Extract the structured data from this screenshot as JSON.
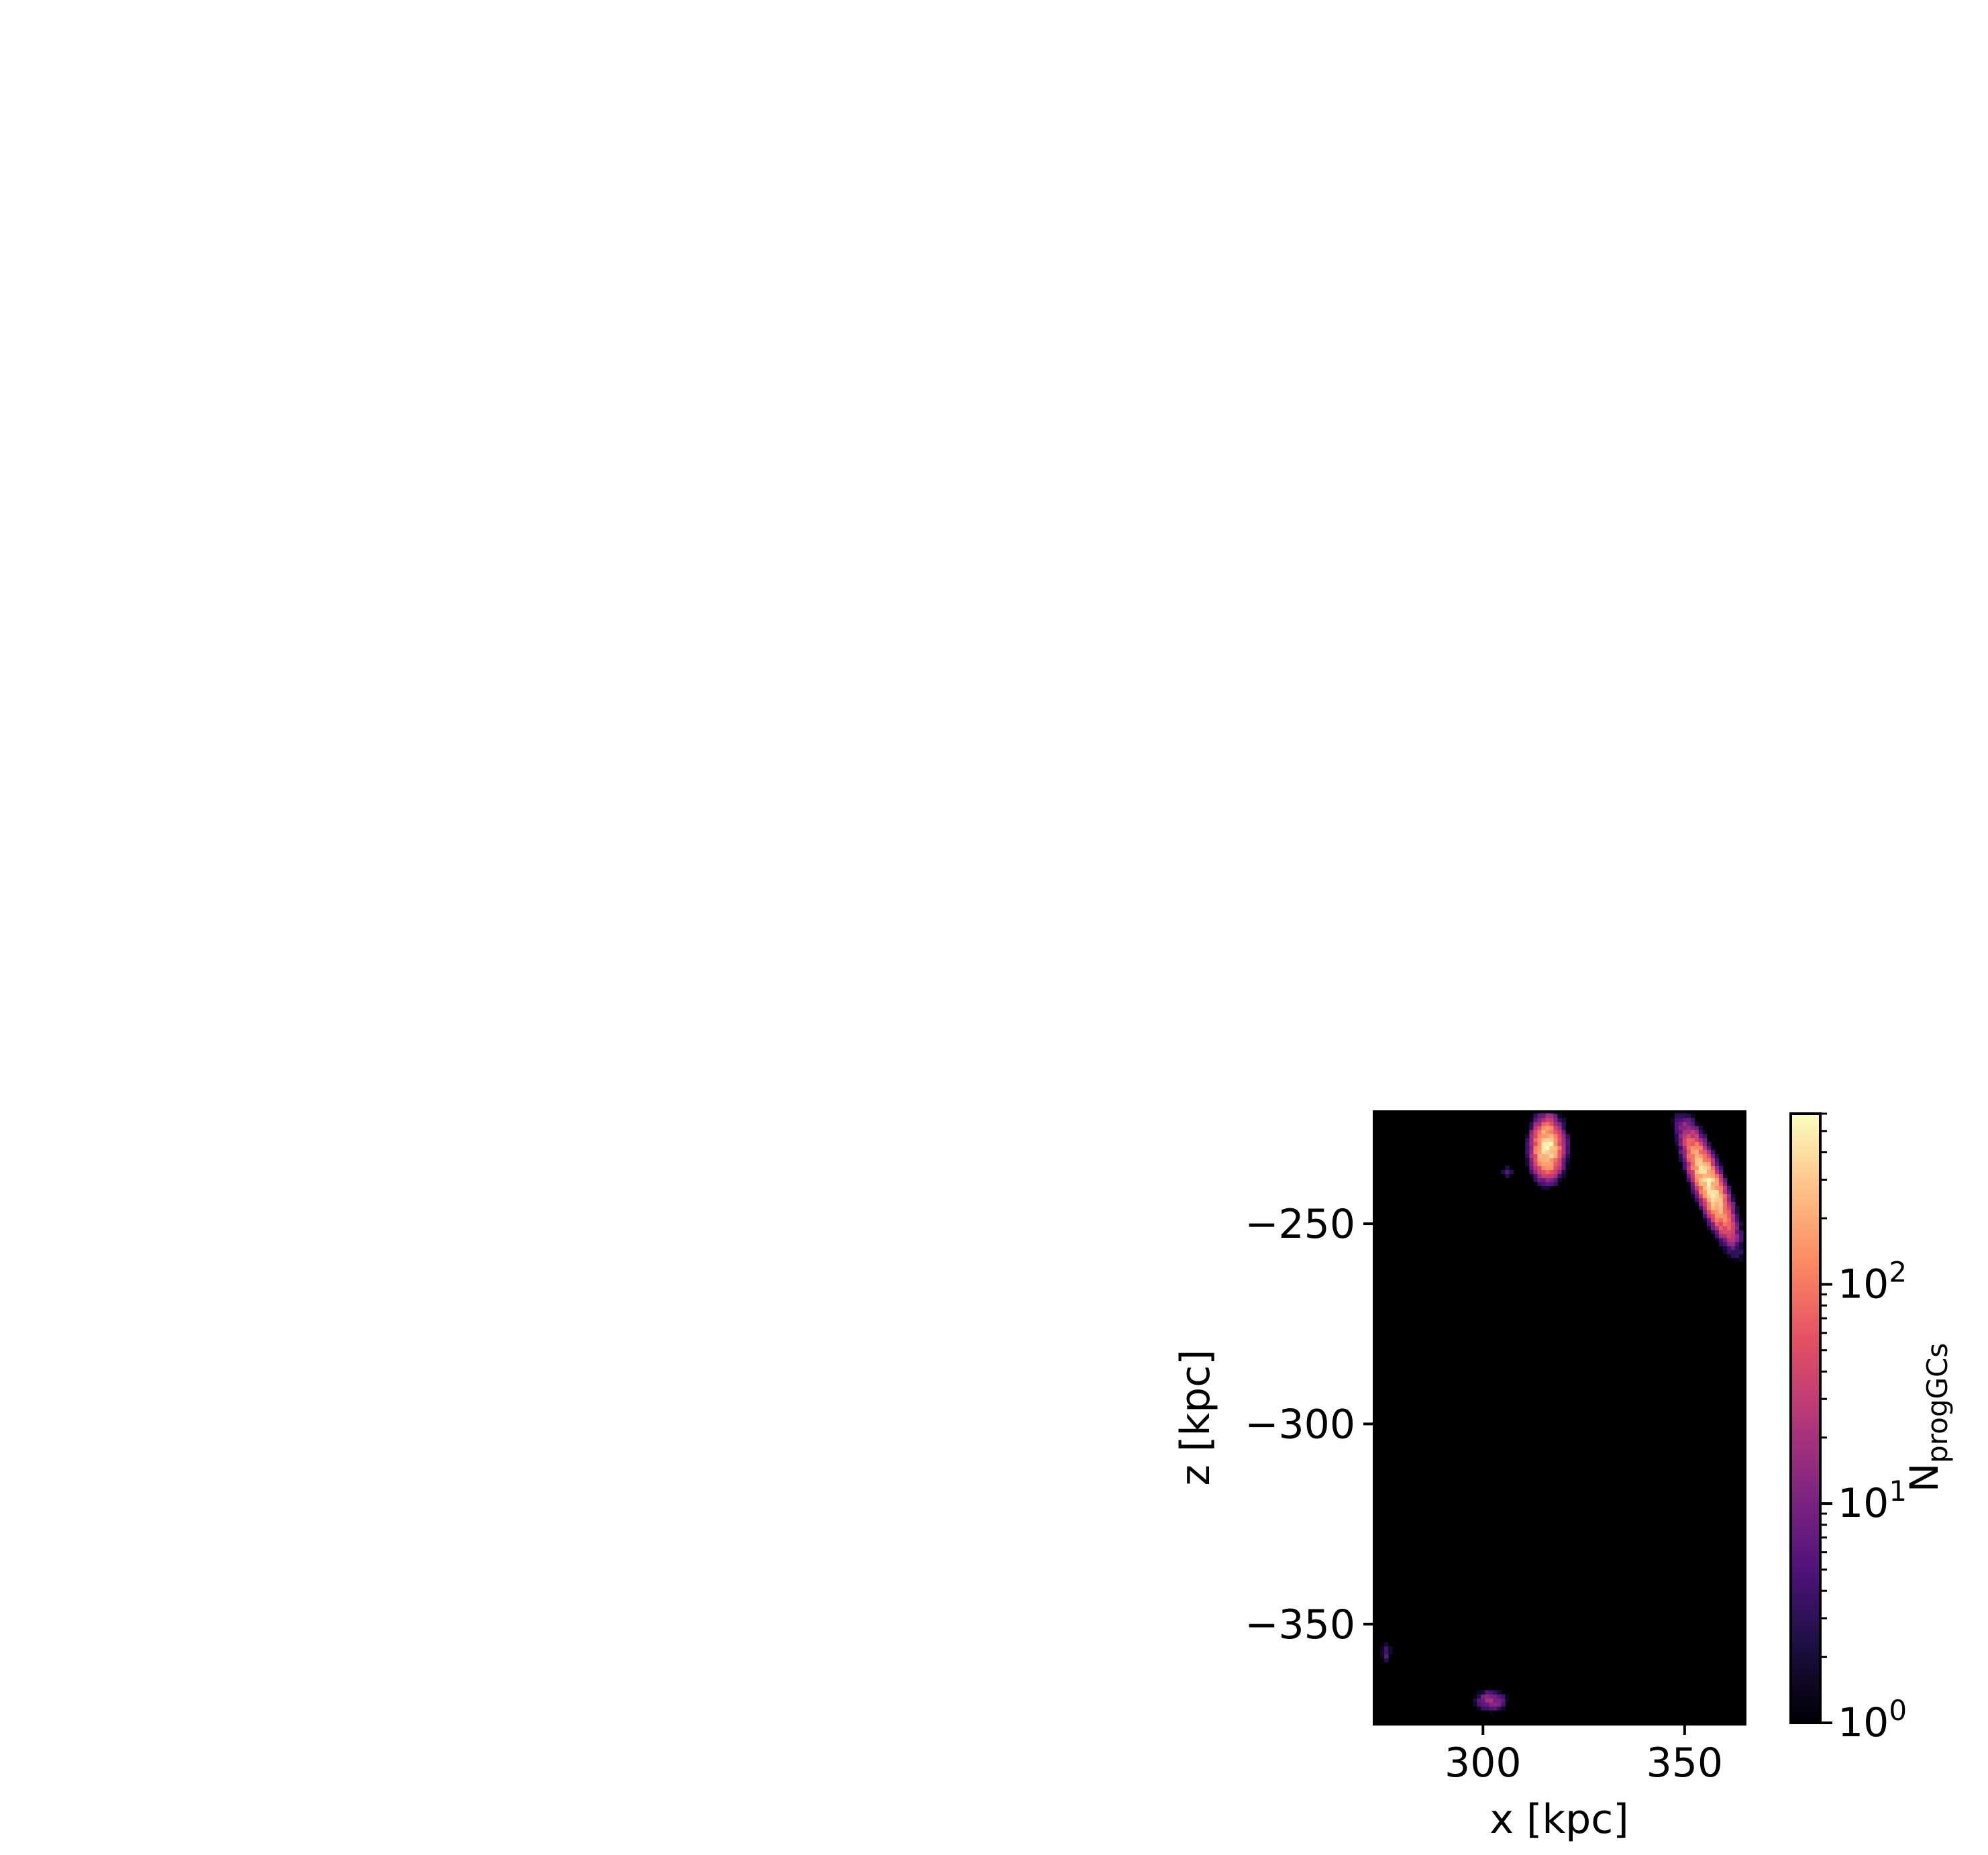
{
  "chart_data": {
    "type": "heatmap",
    "title": "",
    "xlabel": "x [kpc]",
    "ylabel": "z [kpc]",
    "xlim": [
      273,
      365
    ],
    "ylim": [
      -375,
      -222
    ],
    "xticks": [
      300,
      350
    ],
    "xtick_labels": [
      "300",
      "350"
    ],
    "yticks": [
      -250,
      -300,
      -350
    ],
    "ytick_labels": [
      "−250",
      "−300",
      "−350"
    ],
    "background_color": "#000000",
    "colormap": "magma",
    "grid": false,
    "colorbar": {
      "label_main": "N",
      "label_sub": "progGCs",
      "scale": "log",
      "range": [
        1,
        600
      ],
      "ticks": [
        1,
        10,
        100
      ],
      "tick_bases": [
        "10",
        "10",
        "10"
      ],
      "tick_exponents": [
        "0",
        "1",
        "2"
      ]
    },
    "clusters": [
      {
        "x": 316,
        "z": -231,
        "peak_count": 500,
        "sigma_x": 1.6,
        "sigma_z": 3.0,
        "tilt_deg": 0
      },
      {
        "x": 356,
        "z": -240,
        "peak_count": 450,
        "sigma_x": 1.4,
        "sigma_z": 6.0,
        "tilt_deg": -22
      },
      {
        "x": 302,
        "z": -369,
        "peak_count": 20,
        "sigma_x": 1.8,
        "sigma_z": 1.2,
        "tilt_deg": 0
      },
      {
        "x": 276,
        "z": -357,
        "peak_count": 6,
        "sigma_x": 0.6,
        "sigma_z": 1.5,
        "tilt_deg": 0
      },
      {
        "x": 306,
        "z": -237,
        "peak_count": 8,
        "sigma_x": 0.6,
        "sigma_z": 0.7,
        "tilt_deg": 0
      }
    ]
  }
}
